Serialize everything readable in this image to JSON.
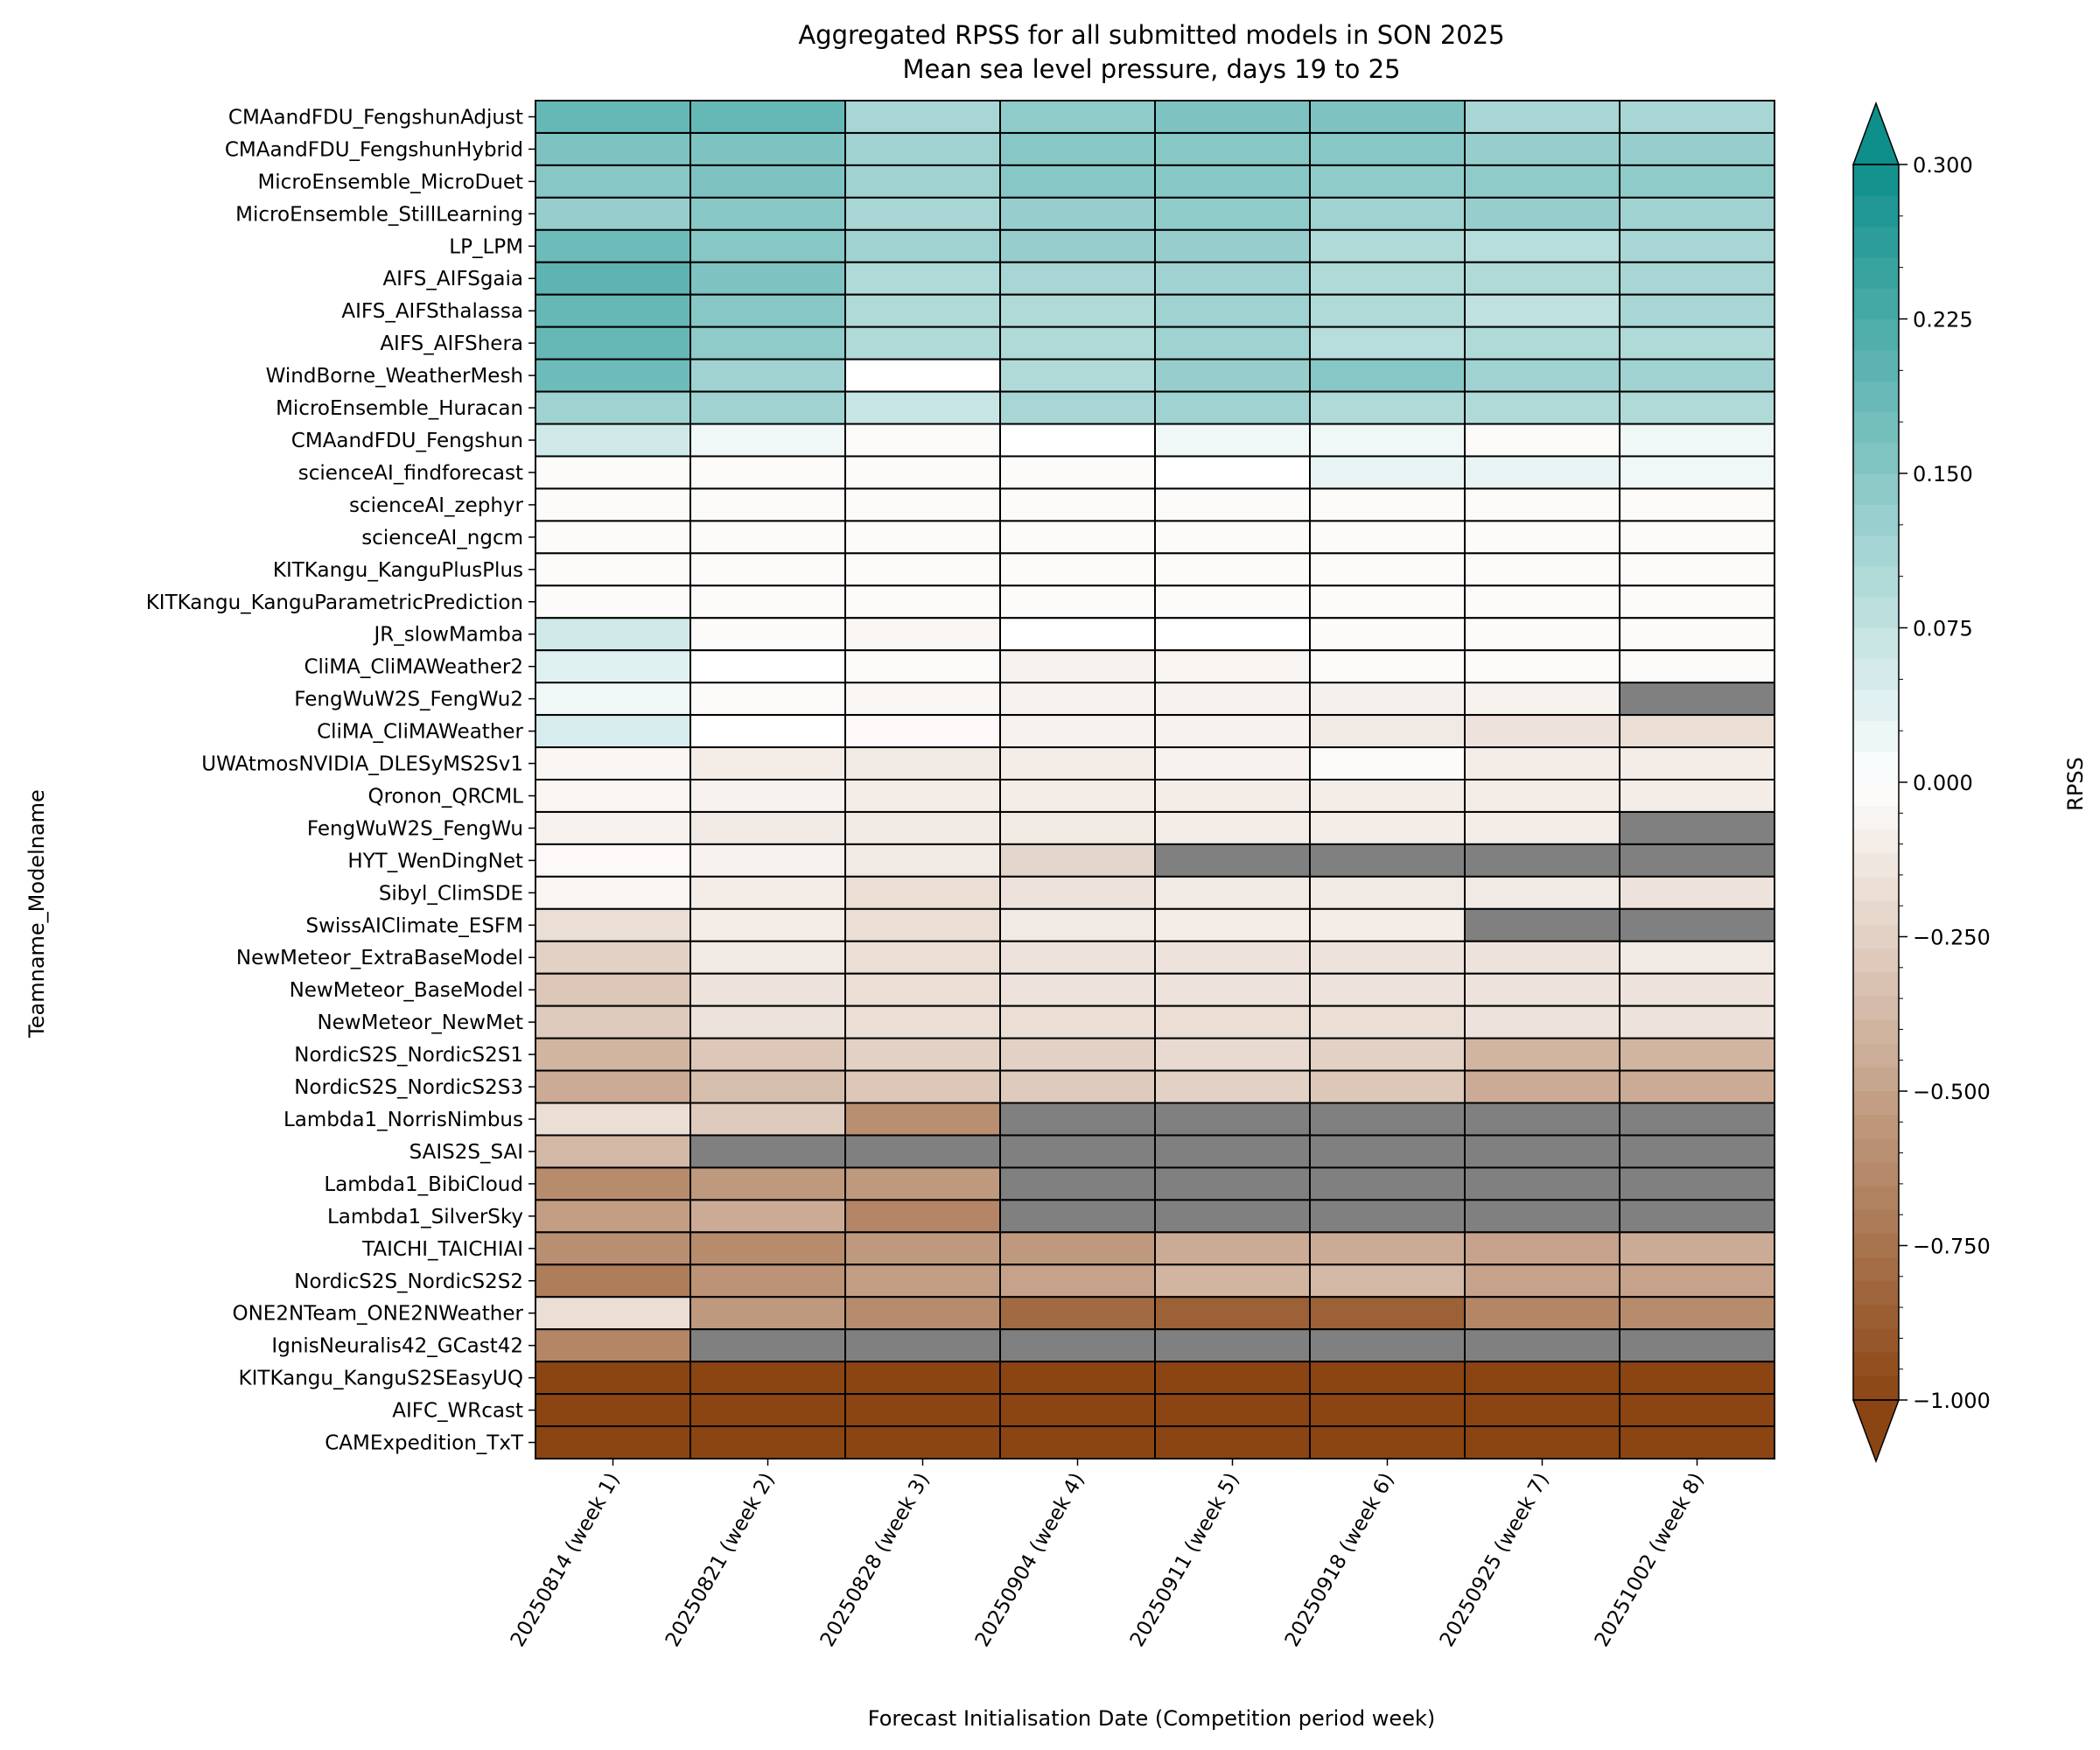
{
  "chart_data": {
    "type": "heatmap",
    "title": "Aggregated RPSS for all submitted models in SON 2025",
    "subtitle": "Mean sea level pressure, days 19 to 25",
    "xlabel": "Forecast Initialisation Date (Competition period week)",
    "ylabel": "Teamname_Modelname",
    "colorbar_label": "RPSS",
    "colorbar_ticks": [
      "0.300",
      "0.225",
      "0.150",
      "0.075",
      "0.000",
      "−0.250",
      "−0.500",
      "−0.750",
      "−1.000"
    ],
    "colorbar_range": [
      -1.0,
      0.3
    ],
    "colorbar_extend": "both",
    "missing_color": "#808080",
    "colors": {
      "positive_end": "#0e8f8b",
      "zero": "#ffffff",
      "negative_end": "#8b4513"
    },
    "x": [
      "20250814 (week 1)",
      "20250821 (week 2)",
      "20250828 (week 3)",
      "20250904 (week 4)",
      "20250911 (week 5)",
      "20250918 (week 6)",
      "20250925 (week 7)",
      "20251002 (week 8)"
    ],
    "y": [
      "CMAandFDU_FengshunAdjust",
      "CMAandFDU_FengshunHybrid",
      "MicroEnsemble_MicroDuet",
      "MicroEnsemble_StillLearning",
      "LP_LPM",
      "AIFS_AIFSgaia",
      "AIFS_AIFSthalassa",
      "AIFS_AIFShera",
      "WindBorne_WeatherMesh",
      "MicroEnsemble_Huracan",
      "CMAandFDU_Fengshun",
      "scienceAI_findforecast",
      "scienceAI_zephyr",
      "scienceAI_ngcm",
      "KITKangu_KanguPlusPlus",
      "KITKangu_KanguParametricPrediction",
      "JR_slowMamba",
      "CliMA_CliMAWeather2",
      "FengWuW2S_FengWu2",
      "CliMA_CliMAWeather",
      "UWAtmosNVIDIA_DLESyMS2Sv1",
      "Qronon_QRCML",
      "FengWuW2S_FengWu",
      "HYT_WenDingNet",
      "Sibyl_ClimSDE",
      "SwissAIClimate_ESFM",
      "NewMeteor_ExtraBaseModel",
      "NewMeteor_BaseModel",
      "NewMeteor_NewMet",
      "NordicS2S_NordicS2S1",
      "NordicS2S_NordicS2S3",
      "Lambda1_NorrisNimbus",
      "SAIS2S_SAI",
      "Lambda1_BibiCloud",
      "Lambda1_SilverSky",
      "TAICHI_TAICHIAI",
      "NordicS2S_NordicS2S2",
      "ONE2NTeam_ONE2NWeather",
      "IgnisNeuralis42_GCast42",
      "KITKangu_KanguS2SEasyUQ",
      "AIFC_WRcast",
      "CAMExpedition_TxT"
    ],
    "values": [
      [
        0.19,
        0.19,
        0.11,
        0.14,
        0.16,
        0.16,
        0.11,
        0.11
      ],
      [
        0.16,
        0.16,
        0.12,
        0.15,
        0.15,
        0.15,
        0.13,
        0.13
      ],
      [
        0.15,
        0.16,
        0.12,
        0.15,
        0.15,
        0.14,
        0.14,
        0.14
      ],
      [
        0.13,
        0.15,
        0.11,
        0.13,
        0.14,
        0.12,
        0.13,
        0.12
      ],
      [
        0.18,
        0.15,
        0.12,
        0.13,
        0.13,
        0.1,
        0.09,
        0.11
      ],
      [
        0.2,
        0.16,
        0.1,
        0.11,
        0.12,
        0.1,
        0.1,
        0.11
      ],
      [
        0.19,
        0.15,
        0.1,
        0.1,
        0.12,
        0.1,
        0.08,
        0.11
      ],
      [
        0.19,
        0.14,
        0.1,
        0.1,
        0.12,
        0.09,
        0.1,
        0.1
      ],
      [
        0.18,
        0.12,
        0.0,
        0.1,
        0.13,
        0.15,
        0.12,
        0.12
      ],
      [
        0.12,
        0.12,
        0.07,
        0.11,
        0.12,
        0.1,
        0.1,
        0.1
      ],
      [
        0.06,
        0.02,
        -0.02,
        0.0,
        0.02,
        0.02,
        -0.02,
        0.02
      ],
      [
        -0.02,
        -0.02,
        -0.02,
        -0.02,
        0.0,
        0.03,
        0.03,
        0.02
      ],
      [
        -0.02,
        -0.02,
        -0.02,
        -0.02,
        -0.02,
        -0.02,
        -0.02,
        -0.02
      ],
      [
        -0.02,
        -0.02,
        -0.02,
        -0.02,
        -0.02,
        -0.02,
        -0.02,
        -0.02
      ],
      [
        -0.02,
        -0.02,
        -0.02,
        -0.02,
        -0.02,
        -0.02,
        -0.02,
        -0.02
      ],
      [
        -0.02,
        -0.02,
        -0.02,
        -0.02,
        -0.02,
        -0.02,
        -0.02,
        -0.02
      ],
      [
        0.06,
        -0.02,
        -0.05,
        0.0,
        0.0,
        -0.02,
        -0.02,
        -0.02
      ],
      [
        0.04,
        0.0,
        -0.02,
        -0.07,
        -0.06,
        -0.02,
        -0.02,
        -0.02
      ],
      [
        0.02,
        -0.02,
        -0.05,
        -0.07,
        -0.07,
        -0.08,
        -0.07,
        null
      ],
      [
        0.05,
        0.0,
        -0.03,
        -0.07,
        -0.07,
        -0.12,
        -0.15,
        -0.18
      ],
      [
        -0.05,
        -0.1,
        -0.12,
        -0.1,
        -0.07,
        -0.02,
        -0.1,
        -0.1
      ],
      [
        -0.05,
        -0.07,
        -0.1,
        -0.1,
        -0.1,
        -0.1,
        -0.1,
        -0.1
      ],
      [
        -0.07,
        -0.12,
        -0.12,
        -0.12,
        -0.1,
        -0.1,
        -0.1,
        null
      ],
      [
        -0.03,
        -0.07,
        -0.12,
        -0.22,
        null,
        null,
        null,
        null
      ],
      [
        -0.05,
        -0.1,
        -0.18,
        -0.15,
        -0.12,
        -0.12,
        -0.12,
        -0.15
      ],
      [
        -0.18,
        -0.1,
        -0.18,
        -0.12,
        -0.1,
        -0.1,
        null,
        null
      ],
      [
        -0.25,
        -0.12,
        -0.18,
        -0.15,
        -0.15,
        -0.15,
        -0.15,
        -0.12
      ],
      [
        -0.3,
        -0.15,
        -0.18,
        -0.15,
        -0.15,
        -0.15,
        -0.15,
        -0.15
      ],
      [
        -0.28,
        -0.15,
        -0.18,
        -0.18,
        -0.18,
        -0.18,
        -0.15,
        -0.15
      ],
      [
        -0.4,
        -0.3,
        -0.25,
        -0.25,
        -0.2,
        -0.25,
        -0.4,
        -0.4
      ],
      [
        -0.45,
        -0.35,
        -0.3,
        -0.28,
        -0.25,
        -0.3,
        -0.45,
        -0.45
      ],
      [
        -0.18,
        -0.28,
        -0.6,
        null,
        null,
        null,
        null,
        null
      ],
      [
        -0.38,
        null,
        null,
        null,
        null,
        null,
        null,
        null
      ],
      [
        -0.62,
        -0.55,
        -0.55,
        null,
        null,
        null,
        null,
        null
      ],
      [
        -0.52,
        -0.45,
        -0.65,
        null,
        null,
        null,
        null,
        null
      ],
      [
        -0.6,
        -0.62,
        -0.55,
        -0.55,
        -0.45,
        -0.45,
        -0.5,
        -0.45
      ],
      [
        -0.7,
        -0.58,
        -0.52,
        -0.5,
        -0.4,
        -0.38,
        -0.5,
        -0.5
      ],
      [
        -0.18,
        -0.55,
        -0.62,
        -0.8,
        -0.85,
        -0.85,
        -0.65,
        -0.62
      ],
      [
        -0.65,
        null,
        null,
        null,
        null,
        null,
        null,
        null
      ],
      [
        -1.0,
        -1.0,
        -1.0,
        -1.0,
        -1.0,
        -1.0,
        -1.0,
        -1.0
      ],
      [
        -1.0,
        -1.0,
        -1.0,
        -1.0,
        -1.0,
        -1.0,
        -1.0,
        -1.0
      ],
      [
        -1.0,
        -1.0,
        -1.0,
        -1.0,
        -1.0,
        -1.0,
        -1.0,
        -1.0
      ]
    ]
  }
}
